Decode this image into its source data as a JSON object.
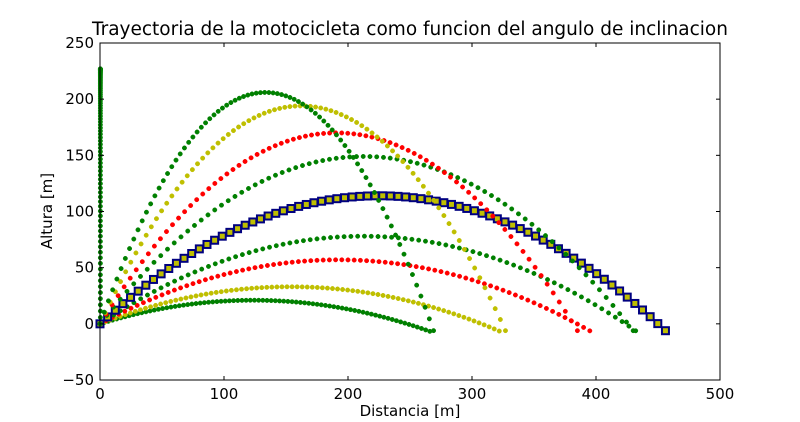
{
  "chart_data": {
    "type": "scatter",
    "title": "Trayectoria de la motocicleta como funcion del angulo de inclinacion",
    "xlabel": "Distancia [m]",
    "ylabel": "Altura [m]",
    "xlim": [
      0,
      500
    ],
    "ylim": [
      -50,
      250
    ],
    "xticks": [
      0,
      100,
      200,
      300,
      400,
      500
    ],
    "yticks": [
      -50,
      0,
      50,
      100,
      150,
      200,
      250
    ],
    "grid": false,
    "legend": "none",
    "series": [
      {
        "color": "#008000",
        "marker": "dot",
        "range_x": 266,
        "max_height": 21,
        "end_y": -3
      },
      {
        "color": "#bfbf00",
        "marker": "dot",
        "range_x": 322,
        "max_height": 33,
        "end_y": -3
      },
      {
        "color": "#ff0000",
        "marker": "dot",
        "range_x": 395,
        "max_height": 57,
        "end_y": -3
      },
      {
        "color": "#008000",
        "marker": "dot",
        "range_x": 432,
        "max_height": 78,
        "end_y": -3
      },
      {
        "color": "#000080",
        "marker": "square",
        "face": "#bfbf00",
        "range_x": 456,
        "max_height": 114,
        "end_y": -3
      },
      {
        "color": "#008000",
        "marker": "dot",
        "range_x": 430,
        "max_height": 149,
        "end_y": -3
      },
      {
        "color": "#ff0000",
        "marker": "dot",
        "range_x": 385,
        "max_height": 170,
        "end_y": -3
      },
      {
        "color": "#bfbf00",
        "marker": "dot",
        "range_x": 327,
        "max_height": 194,
        "end_y": -3
      },
      {
        "color": "#008000",
        "marker": "dot",
        "range_x": 269,
        "max_height": 206,
        "end_y": -3
      },
      {
        "color": "#008000",
        "marker": "dot",
        "range_x": 0.3,
        "max_height": 227,
        "end_y": 0
      }
    ]
  }
}
